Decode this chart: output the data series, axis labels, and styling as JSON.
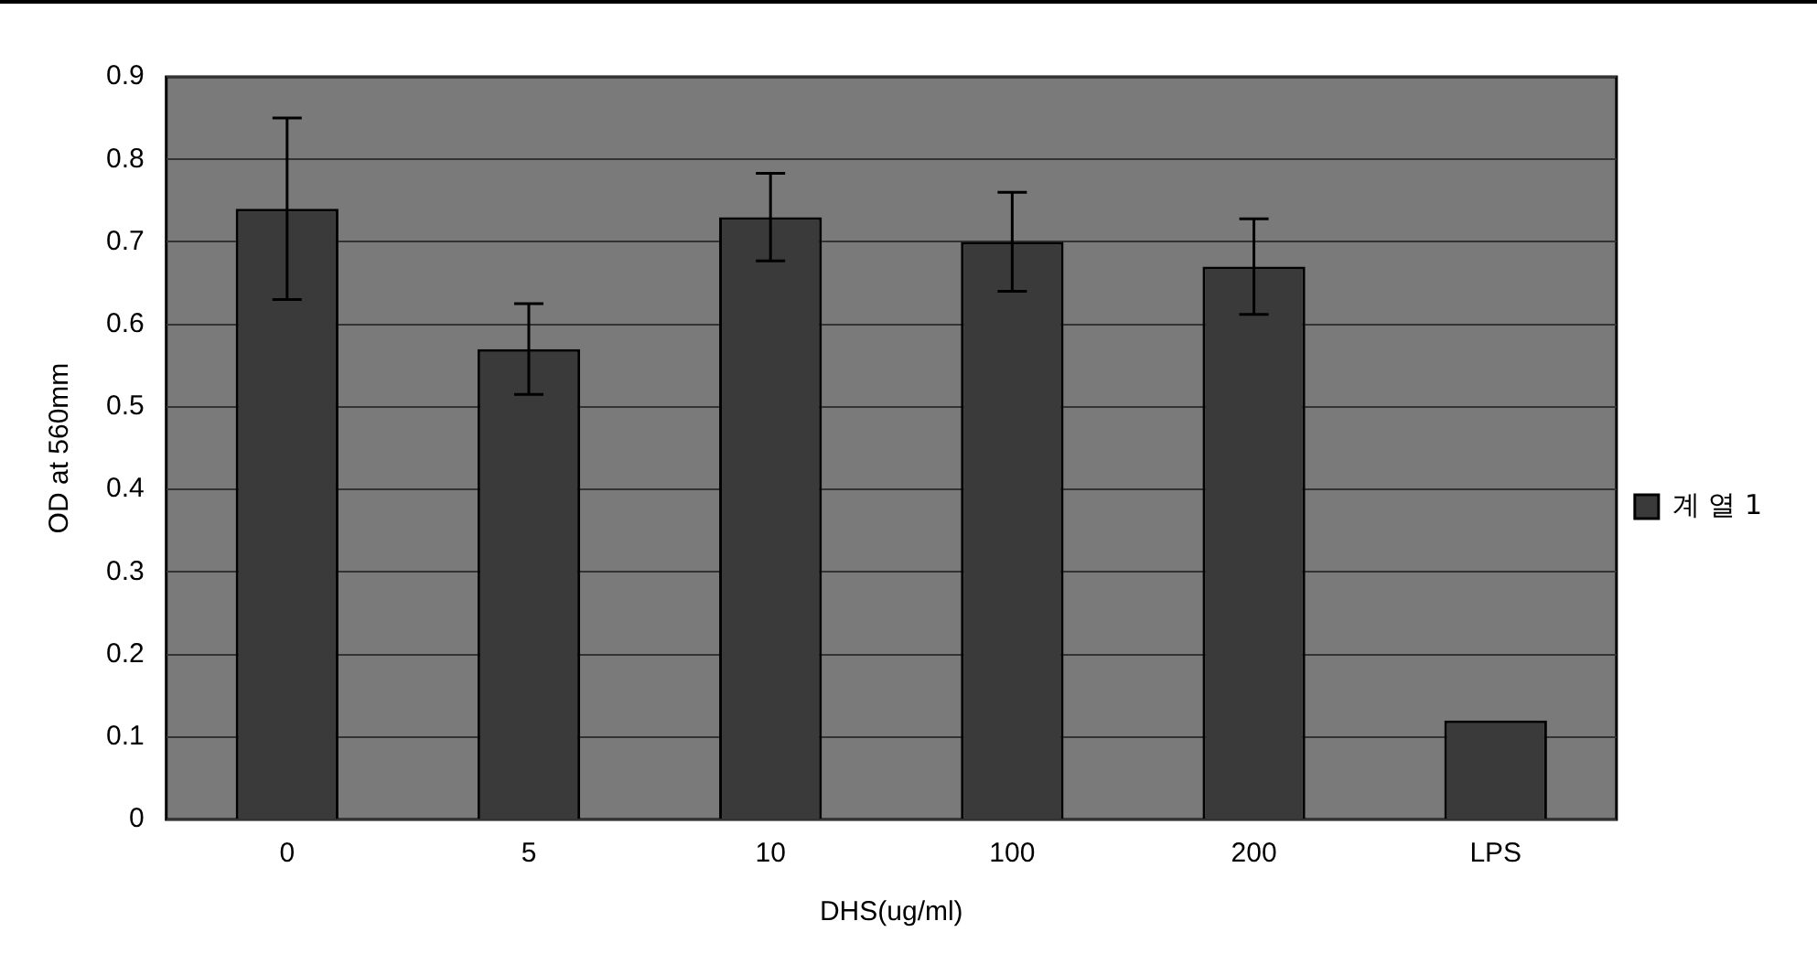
{
  "chart_data": {
    "type": "bar",
    "xlabel": "DHS(ug/ml)",
    "ylabel": "OD at 560mm",
    "categories": [
      "0",
      "5",
      "10",
      "100",
      "200",
      "LPS"
    ],
    "series": [
      {
        "name": "계 열 1",
        "color": "#3a3a3a",
        "values": [
          0.74,
          0.57,
          0.73,
          0.7,
          0.67,
          0.12
        ],
        "errors": [
          0.11,
          0.055,
          0.053,
          0.06,
          0.058,
          null
        ]
      }
    ],
    "ylim": [
      0,
      0.9
    ],
    "yticks": [
      0,
      0.1,
      0.2,
      0.3,
      0.4,
      0.5,
      0.6,
      0.7,
      0.8,
      0.9
    ],
    "grid": "y",
    "legend": "right"
  }
}
